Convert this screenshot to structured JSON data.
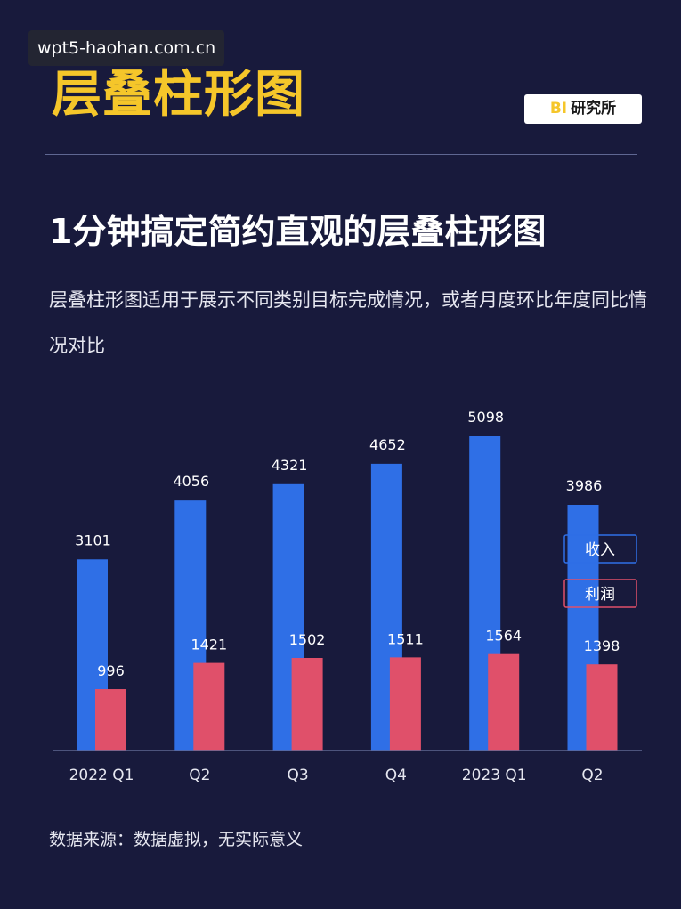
{
  "watermark": "wpt5-haohan.com.cn",
  "header": {
    "title": "层叠柱形图",
    "badge_prefix": "BI",
    "badge_text": "研究所"
  },
  "headline": "1分钟搞定简约直观的层叠柱形图",
  "description": "层叠柱形图适用于展示不同类别目标完成情况，或者月度环比年度同比情况对比",
  "footer": "数据来源：数据虚拟，无实际意义",
  "colors": {
    "background": "#181a3c",
    "accent_title": "#f5c62a",
    "revenue": "#2f6fe6",
    "profit": "#e0506a"
  },
  "chart_data": {
    "type": "bar",
    "categories": [
      "2022 Q1",
      "Q2",
      "Q3",
      "Q4",
      "2023 Q1",
      "Q2"
    ],
    "series": [
      {
        "name": "收入",
        "values": [
          3101,
          4056,
          4321,
          4652,
          5098,
          3986
        ]
      },
      {
        "name": "利润",
        "values": [
          996,
          1421,
          1502,
          1511,
          1564,
          1398
        ]
      }
    ],
    "ylim": [
      0,
      5098
    ],
    "grid": false,
    "legend": "right"
  }
}
